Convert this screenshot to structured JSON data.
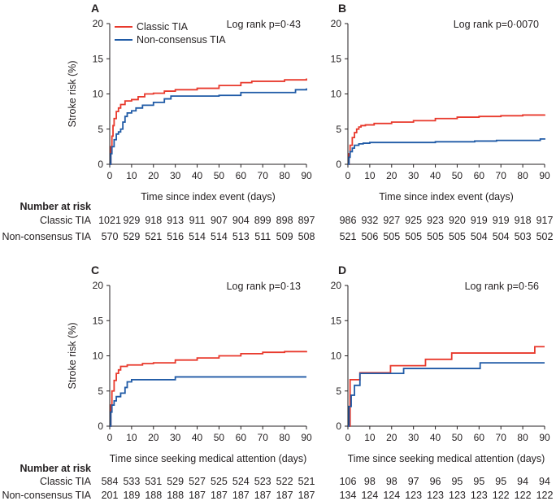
{
  "chart_data": {
    "type": "line",
    "series_names": [
      "Classic TIA",
      "Non-consensus TIA"
    ],
    "colors": {
      "classic": "#e8392c",
      "nonconsensus": "#1f5aa6",
      "axis": "#231f20"
    },
    "number_at_risk_title": "Number at risk",
    "panels": [
      {
        "letter": "A",
        "log_rank": "Log rank p=0·43",
        "xlabel": "Time since index event (days)",
        "ylabel": "Stroke risk (%)",
        "xlim": [
          0,
          90
        ],
        "ylim": [
          0,
          20
        ],
        "x_ticks": [
          0,
          10,
          20,
          30,
          40,
          50,
          60,
          70,
          80,
          90
        ],
        "y_ticks": [
          0,
          5,
          10,
          15,
          20
        ],
        "show_legend": true,
        "series": [
          {
            "name": "Classic TIA",
            "key": "classic",
            "points": [
              [
                0,
                0
              ],
              [
                0.5,
                2.5
              ],
              [
                1,
                4
              ],
              [
                1.5,
                5.5
              ],
              [
                2,
                6.5
              ],
              [
                3,
                7.5
              ],
              [
                4,
                8
              ],
              [
                5,
                8.5
              ],
              [
                7,
                9
              ],
              [
                10,
                9.2
              ],
              [
                13,
                9.6
              ],
              [
                16,
                10
              ],
              [
                20,
                10.1
              ],
              [
                25,
                10.4
              ],
              [
                30,
                10.6
              ],
              [
                40,
                10.8
              ],
              [
                50,
                11.2
              ],
              [
                60,
                11.6
              ],
              [
                65,
                11.8
              ],
              [
                80,
                12
              ],
              [
                90,
                12.2
              ]
            ]
          },
          {
            "name": "Non-consensus TIA",
            "key": "nonconsensus",
            "points": [
              [
                0,
                0
              ],
              [
                0.5,
                1.5
              ],
              [
                1,
                2.5
              ],
              [
                2,
                3.5
              ],
              [
                3,
                4.3
              ],
              [
                4,
                4.6
              ],
              [
                5,
                5
              ],
              [
                6,
                6
              ],
              [
                7,
                6.8
              ],
              [
                8,
                7.3
              ],
              [
                10,
                7.6
              ],
              [
                12,
                8
              ],
              [
                15,
                8.4
              ],
              [
                20,
                8.8
              ],
              [
                25,
                9.3
              ],
              [
                28,
                9.7
              ],
              [
                50,
                9.8
              ],
              [
                60,
                10.2
              ],
              [
                70,
                10.2
              ],
              [
                85,
                10.6
              ],
              [
                90,
                10.8
              ]
            ]
          }
        ],
        "at_risk": {
          "Classic TIA": [
            "1021",
            "929",
            "918",
            "913",
            "911",
            "907",
            "904",
            "899",
            "898",
            "897"
          ],
          "Non-consensus TIA": [
            "570",
            "529",
            "521",
            "516",
            "514",
            "514",
            "513",
            "511",
            "509",
            "508"
          ]
        }
      },
      {
        "letter": "B",
        "log_rank": "Log rank p=0·0070",
        "xlabel": "Time since index event (days)",
        "ylabel": "",
        "xlim": [
          0,
          90
        ],
        "ylim": [
          0,
          20
        ],
        "x_ticks": [
          0,
          10,
          20,
          30,
          40,
          50,
          60,
          70,
          80,
          90
        ],
        "y_ticks": [
          0,
          5,
          10,
          15,
          20
        ],
        "show_legend": false,
        "series": [
          {
            "name": "Classic TIA",
            "key": "classic",
            "points": [
              [
                0,
                0
              ],
              [
                0.5,
                1.5
              ],
              [
                1,
                2.7
              ],
              [
                2,
                3.8
              ],
              [
                3,
                4.5
              ],
              [
                4,
                5
              ],
              [
                5,
                5.3
              ],
              [
                6,
                5.5
              ],
              [
                8,
                5.6
              ],
              [
                12,
                5.8
              ],
              [
                20,
                6
              ],
              [
                30,
                6.2
              ],
              [
                40,
                6.5
              ],
              [
                50,
                6.7
              ],
              [
                60,
                6.8
              ],
              [
                70,
                6.9
              ],
              [
                80,
                7
              ],
              [
                90,
                7.1
              ]
            ]
          },
          {
            "name": "Non-consensus TIA",
            "key": "nonconsensus",
            "points": [
              [
                0,
                0
              ],
              [
                0.5,
                1
              ],
              [
                1,
                1.8
              ],
              [
                2,
                2.3
              ],
              [
                3,
                2.7
              ],
              [
                5,
                2.9
              ],
              [
                7,
                3
              ],
              [
                10,
                3.1
              ],
              [
                20,
                3.1
              ],
              [
                30,
                3.1
              ],
              [
                40,
                3.2
              ],
              [
                58,
                3.3
              ],
              [
                68,
                3.4
              ],
              [
                88,
                3.6
              ],
              [
                90,
                3.7
              ]
            ]
          }
        ],
        "at_risk": {
          "Classic TIA": [
            "986",
            "932",
            "927",
            "925",
            "923",
            "920",
            "919",
            "919",
            "918",
            "917"
          ],
          "Non-consensus TIA": [
            "521",
            "506",
            "505",
            "505",
            "505",
            "505",
            "504",
            "504",
            "503",
            "502"
          ]
        }
      },
      {
        "letter": "C",
        "log_rank": "Log rank p=0·13",
        "xlabel": "Time since seeking medical attention (days)",
        "ylabel": "Stroke risk (%)",
        "xlim": [
          0,
          90
        ],
        "ylim": [
          0,
          20
        ],
        "x_ticks": [
          0,
          10,
          20,
          30,
          40,
          50,
          60,
          70,
          80,
          90
        ],
        "y_ticks": [
          0,
          5,
          10,
          15,
          20
        ],
        "show_legend": false,
        "series": [
          {
            "name": "Classic TIA",
            "key": "classic",
            "points": [
              [
                0,
                0
              ],
              [
                0.5,
                3
              ],
              [
                1,
                5
              ],
              [
                2,
                6.5
              ],
              [
                3,
                7.5
              ],
              [
                4,
                8
              ],
              [
                5,
                8.5
              ],
              [
                8,
                8.7
              ],
              [
                15,
                8.9
              ],
              [
                20,
                9
              ],
              [
                30,
                9.4
              ],
              [
                40,
                9.7
              ],
              [
                50,
                10
              ],
              [
                60,
                10.3
              ],
              [
                70,
                10.5
              ],
              [
                80,
                10.6
              ],
              [
                90,
                10.7
              ]
            ]
          },
          {
            "name": "Non-consensus TIA",
            "key": "nonconsensus",
            "points": [
              [
                0,
                0
              ],
              [
                0.5,
                2
              ],
              [
                1,
                3
              ],
              [
                2,
                3.6
              ],
              [
                3,
                4.2
              ],
              [
                5,
                4.7
              ],
              [
                7,
                5.5
              ],
              [
                8,
                6.3
              ],
              [
                10,
                6.6
              ],
              [
                20,
                6.6
              ],
              [
                30,
                7
              ],
              [
                50,
                7
              ],
              [
                70,
                7
              ],
              [
                90,
                7
              ]
            ]
          }
        ],
        "at_risk": {
          "Classic TIA": [
            "584",
            "533",
            "531",
            "529",
            "527",
            "525",
            "524",
            "523",
            "522",
            "521"
          ],
          "Non-consensus TIA": [
            "201",
            "189",
            "188",
            "188",
            "187",
            "187",
            "187",
            "187",
            "187",
            "187"
          ]
        }
      },
      {
        "letter": "D",
        "log_rank": "Log rank p=0·56",
        "xlabel": "Time since seeking medical attention (days)",
        "ylabel": "",
        "xlim": [
          0,
          90
        ],
        "ylim": [
          0,
          20
        ],
        "x_ticks": [
          0,
          10,
          20,
          30,
          40,
          50,
          60,
          70,
          80,
          90
        ],
        "y_ticks": [
          0,
          5,
          10,
          15,
          20
        ],
        "show_legend": false,
        "series": [
          {
            "name": "Classic TIA",
            "key": "classic",
            "points": [
              [
                0,
                0
              ],
              [
                1,
                6.6
              ],
              [
                5,
                6.6
              ],
              [
                5.5,
                7.6
              ],
              [
                19,
                7.6
              ],
              [
                19.5,
                8.6
              ],
              [
                35,
                8.6
              ],
              [
                35.5,
                9.5
              ],
              [
                47,
                9.5
              ],
              [
                47.5,
                10.4
              ],
              [
                85,
                10.4
              ],
              [
                85.5,
                11.3
              ],
              [
                90,
                11.3
              ]
            ]
          },
          {
            "name": "Non-consensus TIA",
            "key": "nonconsensus",
            "points": [
              [
                0,
                0
              ],
              [
                0.5,
                2.8
              ],
              [
                1,
                2.8
              ],
              [
                1.5,
                4.4
              ],
              [
                2,
                4.4
              ],
              [
                3,
                5.8
              ],
              [
                5,
                5.8
              ],
              [
                5.5,
                7.5
              ],
              [
                25,
                7.5
              ],
              [
                25.5,
                8.2
              ],
              [
                60,
                8.2
              ],
              [
                60.5,
                9
              ],
              [
                90,
                9
              ]
            ]
          }
        ],
        "at_risk": {
          "Classic TIA": [
            "106",
            "98",
            "98",
            "97",
            "96",
            "95",
            "95",
            "95",
            "94",
            "94"
          ],
          "Non-consensus TIA": [
            "134",
            "124",
            "124",
            "123",
            "123",
            "123",
            "123",
            "122",
            "122",
            "122"
          ]
        }
      }
    ]
  }
}
